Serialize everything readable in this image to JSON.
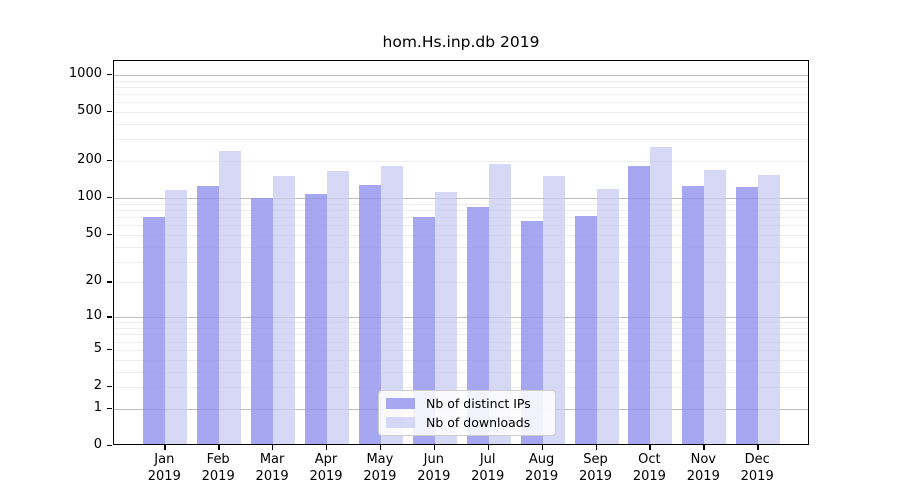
{
  "title": "hom.Hs.inp.db 2019",
  "chart_data": {
    "type": "bar",
    "title": "hom.Hs.inp.db 2019",
    "xlabel": "",
    "ylabel": "",
    "y_scale": "log10(1+x)",
    "y_ticks": [
      0,
      1,
      2,
      5,
      10,
      20,
      50,
      100,
      200,
      500,
      1000
    ],
    "ylim": [
      0,
      1300
    ],
    "grid": "horizontal, minor light + major dark on powers of 10",
    "legend_position": "lower center",
    "categories": [
      "Jan 2019",
      "Feb 2019",
      "Mar 2019",
      "Apr 2019",
      "May 2019",
      "Jun 2019",
      "Jul 2019",
      "Aug 2019",
      "Sep 2019",
      "Oct 2019",
      "Nov 2019",
      "Dec 2019"
    ],
    "series": [
      {
        "name": "Nb of distinct IPs",
        "color": "rgba(148,148,238,0.82)",
        "solid_color_hex": "#a8a8f0",
        "values": [
          68,
          120,
          96,
          104,
          123,
          67,
          82,
          62,
          69,
          176,
          122,
          119
        ]
      },
      {
        "name": "Nb of downloads",
        "color": "rgba(200,200,242,0.72)",
        "solid_color_hex": "#d9d9f6",
        "values": [
          112,
          232,
          146,
          161,
          175,
          109,
          183,
          145,
          114,
          252,
          164,
          149
        ]
      }
    ]
  },
  "colors": {
    "background": "#ffffff",
    "plot_border": "#000000",
    "grid_minor": "#ededed",
    "grid_major": "#bdbdbd",
    "text": "#000000",
    "legend_border": "#cccccc"
  }
}
